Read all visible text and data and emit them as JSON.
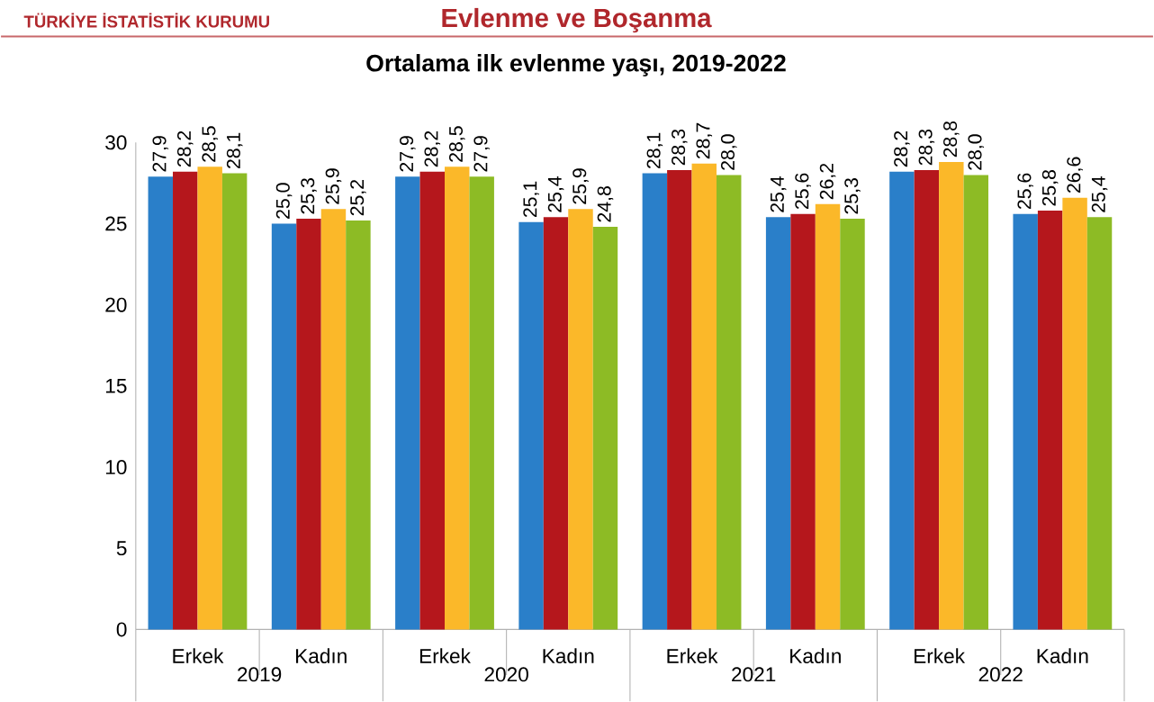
{
  "chart_data": {
    "type": "bar",
    "title": "Ortalama ilk evlenme yaşı, 2019-2022",
    "categories": [
      "Erkek",
      "Kadın",
      "Erkek",
      "Kadın",
      "Erkek",
      "Kadın",
      "Erkek",
      "Kadın"
    ],
    "series": [
      {
        "color": "#2a7fc9",
        "values": [
          27.9,
          25.0,
          27.9,
          25.1,
          28.1,
          25.4,
          28.2,
          25.6
        ],
        "value_labels": [
          "27,9",
          "25,0",
          "27,9",
          "25,1",
          "28,1",
          "25,4",
          "28,2",
          "25,6"
        ]
      },
      {
        "color": "#b5171c",
        "values": [
          28.2,
          25.3,
          28.2,
          25.4,
          28.3,
          25.6,
          28.3,
          25.8
        ],
        "value_labels": [
          "28,2",
          "25,3",
          "28,2",
          "25,4",
          "28,3",
          "25,6",
          "28,3",
          "25,8"
        ]
      },
      {
        "color": "#fbb829",
        "values": [
          28.5,
          25.9,
          28.5,
          25.9,
          28.7,
          26.2,
          28.8,
          26.6
        ],
        "value_labels": [
          "28,5",
          "25,9",
          "28,5",
          "25,9",
          "28,7",
          "26,2",
          "28,8",
          "26,6"
        ]
      },
      {
        "color": "#8dbb25",
        "values": [
          28.1,
          25.2,
          27.9,
          24.8,
          28.0,
          25.3,
          28.0,
          25.4
        ],
        "value_labels": [
          "28,1",
          "25,2",
          "27,9",
          "24,8",
          "28,0",
          "25,3",
          "28,0",
          "25,4"
        ]
      }
    ],
    "ylim": [
      0,
      30
    ],
    "yticks": [
      0,
      5,
      10,
      15,
      20,
      25,
      30
    ],
    "grid": false,
    "annotations": [
      "TÜRKİYE İSTATİSTİK KURUMU",
      "Evlenme ve Boşanma",
      "2019",
      "2020",
      "2021",
      "2022"
    ]
  }
}
